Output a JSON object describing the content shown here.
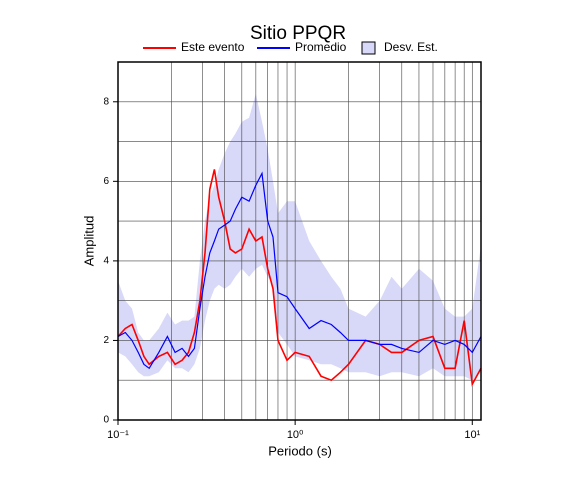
{
  "chart_data": {
    "type": "line",
    "title": "Sitio PPQR",
    "x_label": "Periodo (s)",
    "y_label": "Amplitud",
    "xscale": "log",
    "xlim": [
      0.1,
      11.2
    ],
    "ylim": [
      0,
      9
    ],
    "xticks": [
      {
        "value": 0.1,
        "label": "10⁻¹"
      },
      {
        "value": 1,
        "label": "10⁰"
      },
      {
        "value": 10,
        "label": "10¹"
      }
    ],
    "yticks": [
      0,
      2,
      4,
      6,
      8
    ],
    "xgrid": [
      0.2,
      0.3,
      0.4,
      0.5,
      0.6,
      0.7,
      0.8,
      0.9,
      1,
      2,
      3,
      4,
      5,
      6,
      7,
      8,
      9,
      10
    ],
    "ygrid": [
      1,
      2,
      3,
      4,
      5,
      6,
      7,
      8
    ],
    "x": [
      0.1,
      0.11,
      0.12,
      0.13,
      0.14,
      0.15,
      0.17,
      0.19,
      0.21,
      0.23,
      0.25,
      0.27,
      0.29,
      0.31,
      0.33,
      0.35,
      0.37,
      0.4,
      0.43,
      0.46,
      0.5,
      0.55,
      0.6,
      0.65,
      0.7,
      0.75,
      0.8,
      0.9,
      1.0,
      1.2,
      1.4,
      1.6,
      1.8,
      2.0,
      2.5,
      3,
      3.5,
      4,
      5,
      6,
      7,
      8,
      9,
      10,
      11.2
    ],
    "band": {
      "name": "Desv. Est.",
      "color": "#d8d8f8",
      "upper": [
        3.5,
        3.0,
        2.8,
        2.2,
        2.0,
        2.0,
        2.3,
        2.7,
        2.4,
        2.5,
        2.5,
        2.6,
        4.0,
        5.0,
        5.6,
        5.9,
        6.3,
        6.7,
        7.0,
        7.2,
        7.5,
        7.6,
        8.2,
        7.5,
        6.8,
        6.0,
        5.2,
        5.5,
        5.5,
        4.5,
        4.0,
        3.6,
        3.3,
        2.8,
        2.6,
        3.0,
        3.6,
        3.3,
        3.8,
        3.5,
        2.8,
        2.6,
        2.6,
        2.8,
        4.4
      ],
      "lower": [
        1.7,
        1.6,
        1.4,
        1.2,
        1.1,
        1.1,
        1.2,
        1.5,
        1.3,
        1.3,
        1.2,
        1.4,
        1.8,
        2.5,
        3.0,
        3.3,
        3.4,
        3.3,
        3.4,
        3.6,
        3.8,
        3.6,
        3.8,
        3.9,
        3.6,
        3.4,
        2.2,
        1.9,
        1.6,
        1.5,
        1.4,
        1.4,
        1.3,
        1.2,
        1.2,
        1.1,
        1.2,
        1.2,
        1.1,
        1.3,
        1.1,
        1.1,
        1.1,
        1.0,
        1.2
      ]
    },
    "series": [
      {
        "name": "Este evento",
        "color": "#ff0000",
        "values": [
          2.1,
          2.3,
          2.4,
          2.0,
          1.6,
          1.4,
          1.6,
          1.7,
          1.4,
          1.5,
          1.7,
          2.2,
          3.0,
          4.2,
          5.8,
          6.3,
          5.6,
          5.0,
          4.3,
          4.2,
          4.3,
          4.8,
          4.5,
          4.6,
          3.8,
          3.3,
          2.0,
          1.5,
          1.7,
          1.6,
          1.1,
          1.0,
          1.2,
          1.4,
          2.0,
          1.9,
          1.7,
          1.7,
          2.0,
          2.1,
          1.3,
          1.3,
          2.5,
          0.9,
          1.3
        ]
      },
      {
        "name": "Promedio",
        "color": "#0000ff",
        "values": [
          2.1,
          2.2,
          2.0,
          1.7,
          1.4,
          1.3,
          1.7,
          2.1,
          1.7,
          1.8,
          1.6,
          1.8,
          2.8,
          3.6,
          4.2,
          4.5,
          4.8,
          4.9,
          5.0,
          5.3,
          5.6,
          5.5,
          5.9,
          6.2,
          5.0,
          4.6,
          3.2,
          3.1,
          2.8,
          2.3,
          2.5,
          2.4,
          2.2,
          2.0,
          2.0,
          1.9,
          1.9,
          1.8,
          1.7,
          2.0,
          1.9,
          2.0,
          1.9,
          1.7,
          2.1
        ]
      }
    ]
  }
}
